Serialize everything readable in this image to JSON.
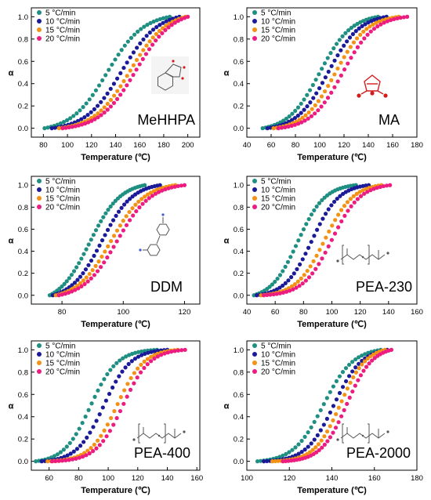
{
  "colors": {
    "series": [
      "#1f8f82",
      "#1b1b99",
      "#f39214",
      "#ec1c80"
    ],
    "structure_accent": "#d21b1b"
  },
  "chart_data": [
    {
      "type": "scatter",
      "panel": "MeHHPA",
      "xlabel": "Temperature (℃)",
      "ylabel": "α",
      "xlim": [
        70,
        210
      ],
      "ylim": [
        -0.08,
        1.08
      ],
      "xticks": [
        80,
        100,
        120,
        140,
        160,
        180,
        200
      ],
      "yticks": [
        0.0,
        0.2,
        0.4,
        0.6,
        0.8,
        1.0
      ],
      "legend_position": "top-left",
      "structure": "anhydride-ring",
      "series": [
        {
          "name": "5 °C/min",
          "x_start": 81,
          "x_end": 185,
          "t_mid": 133,
          "width": 15
        },
        {
          "name": "10 °C/min",
          "x_start": 87,
          "x_end": 193,
          "t_mid": 145,
          "width": 15
        },
        {
          "name": "15 °C/min",
          "x_start": 93,
          "x_end": 198,
          "t_mid": 152,
          "width": 15
        },
        {
          "name": "20 °C/min",
          "x_start": 96,
          "x_end": 200,
          "t_mid": 157,
          "width": 15
        }
      ]
    },
    {
      "type": "scatter",
      "panel": "MA",
      "xlabel": "Temperature (℃)",
      "ylabel": "α",
      "xlim": [
        40,
        180
      ],
      "ylim": [
        -0.08,
        1.08
      ],
      "xticks": [
        40,
        60,
        80,
        100,
        120,
        140,
        160,
        180
      ],
      "yticks": [
        0.0,
        0.2,
        0.4,
        0.6,
        0.8,
        1.0
      ],
      "legend_position": "top-left",
      "structure": "maleic-anhydride",
      "series": [
        {
          "name": "5 °C/min",
          "x_start": 53,
          "x_end": 148,
          "t_mid": 100,
          "width": 13
        },
        {
          "name": "10 °C/min",
          "x_start": 57,
          "x_end": 155,
          "t_mid": 107,
          "width": 13
        },
        {
          "name": "15 °C/min",
          "x_start": 62,
          "x_end": 165,
          "t_mid": 113,
          "width": 13
        },
        {
          "name": "20 °C/min",
          "x_start": 66,
          "x_end": 172,
          "t_mid": 119,
          "width": 13
        }
      ]
    },
    {
      "type": "scatter",
      "panel": "DDM",
      "xlabel": "Temperature (℃)",
      "ylabel": "α",
      "xlim": [
        70,
        125
      ],
      "ylim": [
        -0.08,
        1.08
      ],
      "xticks": [
        80,
        100,
        120
      ],
      "yticks": [
        0.0,
        0.2,
        0.4,
        0.6,
        0.8,
        1.0
      ],
      "legend_position": "top-left",
      "structure": "ddm",
      "series": [
        {
          "name": "5 °C/min",
          "x_start": 76,
          "x_end": 107,
          "t_mid": 89,
          "width": 5
        },
        {
          "name": "10 °C/min",
          "x_start": 77,
          "x_end": 112,
          "t_mid": 93,
          "width": 5
        },
        {
          "name": "15 °C/min",
          "x_start": 78,
          "x_end": 117,
          "t_mid": 96,
          "width": 5.5
        },
        {
          "name": "20 °C/min",
          "x_start": 79,
          "x_end": 120,
          "t_mid": 98,
          "width": 5.5
        }
      ]
    },
    {
      "type": "scatter",
      "panel": "PEA-230",
      "xlabel": "Temperature (℃)",
      "ylabel": "α",
      "xlim": [
        40,
        160
      ],
      "ylim": [
        -0.08,
        1.08
      ],
      "xticks": [
        40,
        60,
        80,
        100,
        120,
        140,
        160
      ],
      "yticks": [
        0.0,
        0.2,
        0.4,
        0.6,
        0.8,
        1.0
      ],
      "legend_position": "top-left",
      "structure": "pea",
      "series": [
        {
          "name": "5 °C/min",
          "x_start": 45,
          "x_end": 117,
          "t_mid": 76,
          "width": 9.5
        },
        {
          "name": "10 °C/min",
          "x_start": 47,
          "x_end": 126,
          "t_mid": 86,
          "width": 9.5
        },
        {
          "name": "15 °C/min",
          "x_start": 50,
          "x_end": 135,
          "t_mid": 95,
          "width": 10
        },
        {
          "name": "20 °C/min",
          "x_start": 52,
          "x_end": 141,
          "t_mid": 100,
          "width": 10
        }
      ]
    },
    {
      "type": "scatter",
      "panel": "PEA-400",
      "xlabel": "Temperature (℃)",
      "ylabel": "α",
      "xlim": [
        48,
        162
      ],
      "ylim": [
        -0.08,
        1.08
      ],
      "xticks": [
        60,
        80,
        100,
        120,
        140,
        160
      ],
      "yticks": [
        0.0,
        0.2,
        0.4,
        0.6,
        0.8,
        1.0
      ],
      "legend_position": "top-left",
      "structure": "pea",
      "series": [
        {
          "name": "5 °C/min",
          "x_start": 51,
          "x_end": 133,
          "t_mid": 88,
          "width": 9
        },
        {
          "name": "10 °C/min",
          "x_start": 55,
          "x_end": 140,
          "t_mid": 97,
          "width": 9
        },
        {
          "name": "15 °C/min",
          "x_start": 59,
          "x_end": 147,
          "t_mid": 106,
          "width": 9
        },
        {
          "name": "20 °C/min",
          "x_start": 62,
          "x_end": 152,
          "t_mid": 110,
          "width": 9
        }
      ]
    },
    {
      "type": "scatter",
      "panel": "PEA-2000",
      "xlabel": "Temperature (℃)",
      "ylabel": "α",
      "xlim": [
        100,
        180
      ],
      "ylim": [
        -0.08,
        1.08
      ],
      "xticks": [
        100,
        120,
        140,
        160,
        180
      ],
      "yticks": [
        0.0,
        0.2,
        0.4,
        0.6,
        0.8,
        1.0
      ],
      "legend_position": "top-left",
      "structure": "pea",
      "series": [
        {
          "name": "5 °C/min",
          "x_start": 105,
          "x_end": 163,
          "t_mid": 136,
          "width": 7
        },
        {
          "name": "10 °C/min",
          "x_start": 108,
          "x_end": 166,
          "t_mid": 141,
          "width": 6.5
        },
        {
          "name": "15 °C/min",
          "x_start": 112,
          "x_end": 165,
          "t_mid": 144,
          "width": 6
        },
        {
          "name": "20 °C/min",
          "x_start": 117,
          "x_end": 168,
          "t_mid": 147,
          "width": 6
        }
      ]
    }
  ]
}
